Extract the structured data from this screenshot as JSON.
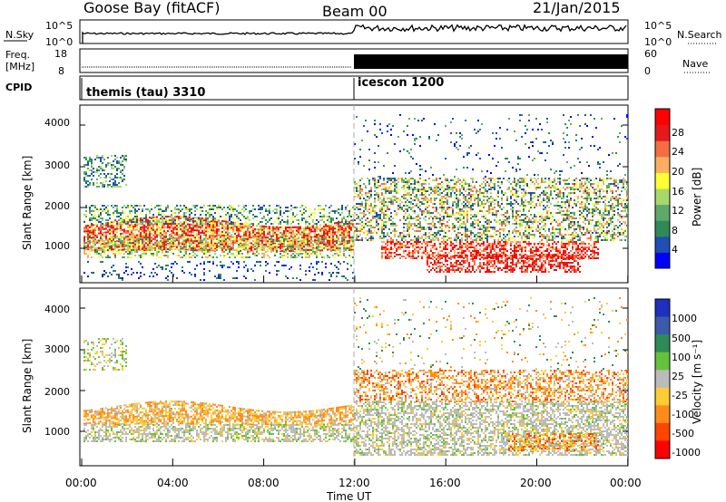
{
  "header": {
    "station": "Goose Bay (fitACF)",
    "beam": "Beam 00",
    "date": "21/Jan/2015"
  },
  "strips": {
    "nsky": {
      "label": "N.Sky",
      "ticks": [
        "10^5",
        "10^0"
      ],
      "right_ticks": [
        "10^5",
        "10^0"
      ],
      "right_label": "N.Search"
    },
    "freq": {
      "label_line1": "Freq.",
      "label_line2": "[MHz]",
      "ticks": [
        "18",
        "8"
      ],
      "right_ticks": [
        "60",
        "0"
      ],
      "right_label": "Nave"
    },
    "cpid": {
      "label": "CPID",
      "segments": [
        "themis (tau) 3310",
        "icescon 1200"
      ]
    }
  },
  "power_panel": {
    "ylabel": "Slant Range [km]",
    "yticks": [
      "4000",
      "3000",
      "2000",
      "1000"
    ],
    "colorbar_label": "Power [dB]",
    "colorbar_ticks": [
      "28",
      "24",
      "20",
      "16",
      "12",
      "8",
      "4"
    ],
    "colors": [
      "#0000ff",
      "#1f4fb4",
      "#2e8b57",
      "#5fa86a",
      "#a6d96a",
      "#ffff33",
      "#fdae61",
      "#f46d43",
      "#e31a1c",
      "#ff0000"
    ]
  },
  "velocity_panel": {
    "ylabel": "Slant Range [km]",
    "yticks": [
      "4000",
      "3000",
      "2000",
      "1000"
    ],
    "colorbar_label": "Velocity [m s⁻¹]",
    "colorbar_ticks": [
      "1000",
      "500",
      "100",
      "25",
      "-25",
      "-100",
      "-500",
      "-1000"
    ],
    "colors": [
      "#1f2fbf",
      "#3b5ba9",
      "#2e8b57",
      "#66c23a",
      "#bbbbbb",
      "#ffcc33",
      "#ff8c1a",
      "#ff4500",
      "#ff0000"
    ]
  },
  "xaxis": {
    "ticks": [
      "00:00",
      "04:00",
      "08:00",
      "12:00",
      "16:00",
      "20:00",
      "00:00"
    ],
    "label": "Time UT"
  },
  "chart_data": {
    "type": "heatmap",
    "title": "Goose Bay (fitACF)",
    "x_label": "Time UT",
    "x_range": [
      "00:00",
      "00:00"
    ],
    "y_label": "Slant Range [km]",
    "y_range": [
      180,
      4500
    ],
    "panels": [
      {
        "name": "Power [dB]",
        "color_range": [
          0,
          30
        ]
      },
      {
        "name": "Velocity [m s⁻¹]",
        "color_range": [
          -1000,
          1000
        ]
      }
    ],
    "mode_change_time": "12:00",
    "cpid_segments": [
      {
        "from": "00:00",
        "to": "12:00",
        "name": "themis (tau) 3310"
      },
      {
        "from": "12:00",
        "to": "00:00",
        "name": "icescon 1200"
      }
    ]
  }
}
